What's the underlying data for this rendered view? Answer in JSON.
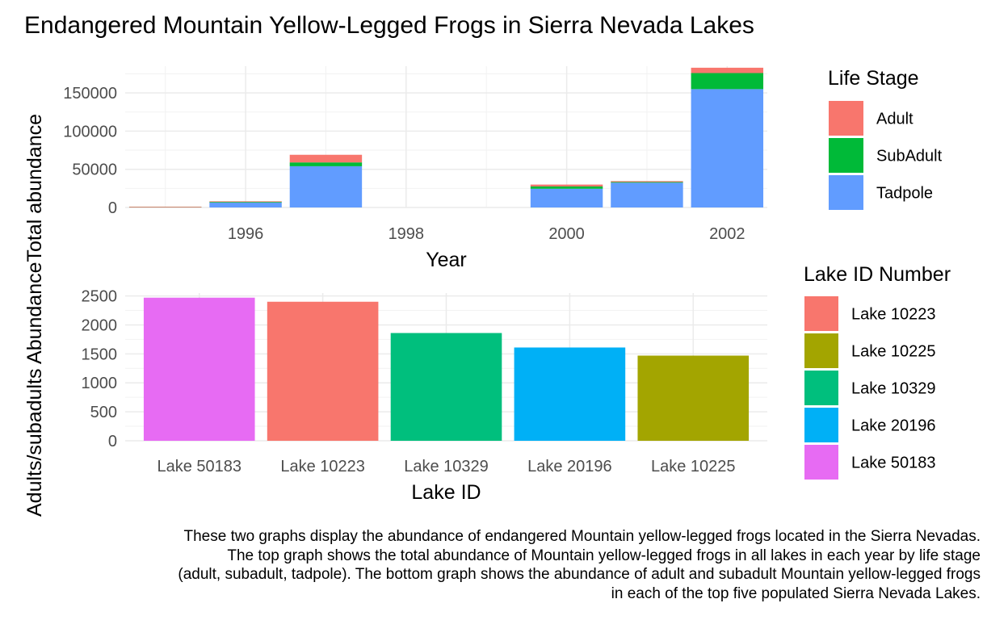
{
  "title": "Endangered Mountain Yellow-Legged Frogs in Sierra Nevada Lakes",
  "shared_ylabel_fragment": "Adults/subadults Abundance",
  "caption": [
    "These two graphs display the abundance of endangered Mountain yellow-legged frogs located in the Sierra Nevadas.",
    "The top graph shows the total abundance of Mountain yellow-legged frogs in all lakes in each year by life stage",
    "(adult, subadult, tadpole). The bottom graph shows the abundance of adult and subadult Mountain yellow-legged frogs",
    "in each of the top five populated Sierra Nevada Lakes."
  ],
  "colors": {
    "Adult": "#F8766D",
    "SubAdult": "#00BA38",
    "Tadpole": "#619CFF",
    "Lake 10223": "#F8766D",
    "Lake 10225": "#A3A500",
    "Lake 10329": "#00BF7D",
    "Lake 20196": "#00B0F6",
    "Lake 50183": "#E76BF3"
  },
  "chart_data": [
    {
      "type": "bar",
      "stacked": true,
      "xlabel": "Year",
      "ylabel": "Total abundance",
      "x": [
        1995,
        1996,
        1997,
        1998,
        1999,
        2000,
        2001,
        2002
      ],
      "x_ticks": [
        1996,
        1998,
        2000,
        2002
      ],
      "xlim": [
        1994.5,
        2002.5
      ],
      "ylim": [
        0,
        185000
      ],
      "y_ticks": [
        0,
        50000,
        100000,
        150000
      ],
      "series": [
        {
          "name": "Tadpole",
          "values": [
            800,
            6500,
            54000,
            0,
            0,
            24500,
            32500,
            155000
          ]
        },
        {
          "name": "SubAdult",
          "values": [
            50,
            1000,
            5000,
            0,
            0,
            3000,
            800,
            21000
          ]
        },
        {
          "name": "Adult",
          "values": [
            150,
            600,
            10000,
            0,
            0,
            2500,
            1200,
            7000
          ]
        }
      ],
      "stack_order": [
        "Tadpole",
        "SubAdult",
        "Adult"
      ],
      "legend": {
        "title": "Life Stage",
        "items": [
          "Adult",
          "SubAdult",
          "Tadpole"
        ],
        "position": "right"
      },
      "grid": true
    },
    {
      "type": "bar",
      "xlabel": "Lake ID",
      "ylabel": "Adults/subadults Abundance",
      "categories": [
        "Lake 50183",
        "Lake 10223",
        "Lake 10329",
        "Lake 20196",
        "Lake 10225"
      ],
      "values": [
        2470,
        2400,
        1860,
        1610,
        1470
      ],
      "ylim": [
        0,
        2550
      ],
      "y_ticks": [
        0,
        500,
        1000,
        1500,
        2000,
        2500
      ],
      "legend": {
        "title": "Lake ID Number",
        "items": [
          "Lake 10223",
          "Lake 10225",
          "Lake 10329",
          "Lake 20196",
          "Lake 50183"
        ],
        "position": "right"
      },
      "grid": true
    }
  ]
}
